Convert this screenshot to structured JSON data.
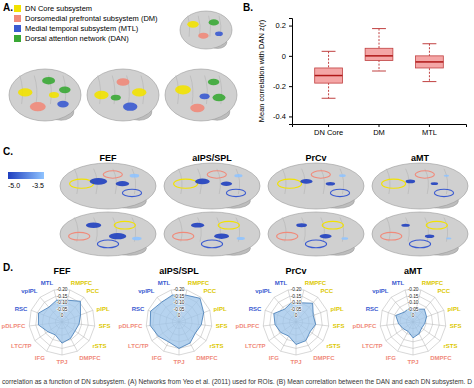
{
  "chart_data": [
    {
      "type": "box",
      "y_label": "Mean correlation with DAN z(r)",
      "categories": [
        "DN Core",
        "DM",
        "MTL"
      ],
      "boxes": [
        {
          "min": -0.28,
          "q1": -0.18,
          "median": -0.13,
          "q3": -0.08,
          "max": 0.03
        },
        {
          "min": -0.1,
          "q1": -0.03,
          "median": 0.0,
          "q3": 0.05,
          "max": 0.18
        },
        {
          "min": -0.17,
          "q1": -0.08,
          "median": -0.04,
          "q3": 0.0,
          "max": 0.08
        }
      ],
      "color": "#f4a6a6",
      "ylim": [
        -0.45,
        0.25
      ],
      "yticks": [
        0.2,
        0,
        -0.2,
        -0.4
      ]
    },
    {
      "type": "radar",
      "title": "FEF",
      "categories": [
        "RMPFC",
        "PCC",
        "pIPL",
        "SFS",
        "rSTS",
        "DMPFC",
        "TPJ",
        "IFG",
        "LTC/TP",
        "pDLPFC",
        "RSC",
        "vpIPL",
        "MTL"
      ],
      "colors": [
        "#dcc800",
        "#dcc800",
        "#dcc800",
        "#dcc800",
        "#dcc800",
        "#f08a7a",
        "#f08a7a",
        "#f08a7a",
        "#f08a7a",
        "#f08a7a",
        "#3a5ad0",
        "#3a5ad0",
        "#3a5ad0"
      ],
      "values": [
        -0.12,
        -0.16,
        -0.1,
        -0.08,
        -0.07,
        -0.09,
        -0.11,
        -0.06,
        -0.08,
        -0.13,
        -0.14,
        -0.1,
        -0.12
      ],
      "color": "#9ec4ea",
      "ylim": [
        0.05,
        -0.2
      ],
      "yticks": [
        {
          "value": -0.2,
          "label": "-0.20"
        },
        {
          "value": -0.15,
          "label": "-0.15"
        },
        {
          "value": -0.1,
          "label": "-0.10"
        },
        {
          "value": -0.05,
          "label": "-0.05"
        },
        0
      ]
    },
    {
      "type": "radar",
      "title": "aIPS/SPL",
      "categories": [
        "RMPFC",
        "PCC",
        "pIPL",
        "SFS",
        "rSTS",
        "DMPFC",
        "TPJ",
        "IFG",
        "LTC/TP",
        "pDLPFC",
        "RSC",
        "vpIPL",
        "MTL"
      ],
      "colors": [
        "#dcc800",
        "#dcc800",
        "#dcc800",
        "#dcc800",
        "#dcc800",
        "#f08a7a",
        "#f08a7a",
        "#f08a7a",
        "#f08a7a",
        "#f08a7a",
        "#3a5ad0",
        "#3a5ad0",
        "#3a5ad0"
      ],
      "values": [
        -0.16,
        -0.19,
        -0.15,
        -0.12,
        -0.1,
        -0.13,
        -0.15,
        -0.12,
        -0.14,
        -0.17,
        -0.18,
        -0.15,
        -0.16
      ],
      "color": "#9ec4ea",
      "ylim": [
        0.05,
        -0.2
      ],
      "yticks": [
        {
          "value": -0.2,
          "label": "-0.20"
        },
        {
          "value": -0.15,
          "label": "-0.15"
        },
        {
          "value": -0.1,
          "label": "-0.10"
        },
        {
          "value": -0.05,
          "label": "-0.05"
        },
        0
      ]
    },
    {
      "type": "radar",
      "title": "PrCv",
      "categories": [
        "RMPFC",
        "PCC",
        "pIPL",
        "SFS",
        "rSTS",
        "DMPFC",
        "TPJ",
        "IFG",
        "LTC/TP",
        "pDLPFC",
        "RSC",
        "vpIPL",
        "MTL"
      ],
      "colors": [
        "#dcc800",
        "#dcc800",
        "#dcc800",
        "#dcc800",
        "#dcc800",
        "#f08a7a",
        "#f08a7a",
        "#f08a7a",
        "#f08a7a",
        "#f08a7a",
        "#3a5ad0",
        "#3a5ad0",
        "#3a5ad0"
      ],
      "values": [
        -0.1,
        -0.14,
        -0.09,
        -0.1,
        -0.08,
        -0.11,
        -0.12,
        -0.07,
        -0.09,
        -0.11,
        -0.13,
        -0.08,
        -0.1
      ],
      "color": "#9ec4ea",
      "ylim": [
        0.05,
        -0.2
      ],
      "yticks": [
        {
          "value": -0.2,
          "label": "-0.20"
        },
        {
          "value": -0.15,
          "label": "-0.15"
        },
        {
          "value": -0.1,
          "label": "-0.10"
        },
        {
          "value": -0.05,
          "label": "-0.05"
        },
        0
      ]
    },
    {
      "type": "radar",
      "title": "aMT",
      "categories": [
        "RMPFC",
        "PCC",
        "pIPL",
        "SFS",
        "rSTS",
        "DMPFC",
        "TPJ",
        "IFG",
        "LTC/TP",
        "pDLPFC",
        "RSC",
        "vpIPL",
        "MTL"
      ],
      "colors": [
        "#dcc800",
        "#dcc800",
        "#dcc800",
        "#dcc800",
        "#dcc800",
        "#f08a7a",
        "#f08a7a",
        "#f08a7a",
        "#f08a7a",
        "#f08a7a",
        "#3a5ad0",
        "#3a5ad0",
        "#3a5ad0"
      ],
      "values": [
        -0.05,
        -0.08,
        -0.06,
        -0.04,
        -0.03,
        -0.05,
        -0.07,
        -0.03,
        -0.04,
        -0.06,
        -0.09,
        -0.05,
        -0.06
      ],
      "color": "#9ec4ea",
      "ylim": [
        0.05,
        -0.2
      ],
      "yticks": [
        {
          "value": -0.2,
          "label": "-0.20"
        },
        {
          "value": -0.15,
          "label": "-0.15"
        },
        {
          "value": -0.1,
          "label": "-0.10"
        },
        {
          "value": -0.05,
          "label": "-0.05"
        },
        0
      ]
    }
  ],
  "figure": {
    "panel_labels": [
      "A.",
      "B.",
      "C.",
      "D."
    ],
    "legend": [
      {
        "name": "DN Core subsystem",
        "color": "#f2e200"
      },
      {
        "name": "Dorsomedial prefrontal subsystem (DM)",
        "color": "#f08a7a"
      },
      {
        "name": "Medial temporal subsystem (MTL)",
        "color": "#3a5ad0"
      },
      {
        "name": "Dorsal attention network (DAN)",
        "color": "#3aa835"
      }
    ],
    "brain_titles": [
      "FEF",
      "aIPS/SPL",
      "PrCv",
      "aMT"
    ],
    "colorbar": {
      "range": [
        -5.0,
        -3.5
      ],
      "colors": [
        "#1f3fbf",
        "#8fc3ff"
      ],
      "ticks": [
        {
          "value": -5.0,
          "label": "-5.0"
        },
        {
          "value": -3.5,
          "label": "-3.5"
        }
      ]
    },
    "caption": "correlation as a function of DN subsystem. (A) Networks from Yeo et al. (2011) used for ROIs. (B) Mean correlation between the DAN and each DN subsystem. D"
  }
}
